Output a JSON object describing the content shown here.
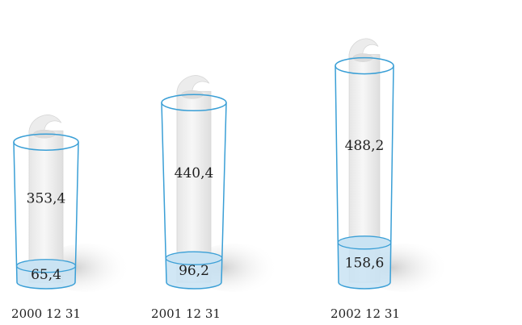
{
  "chart_data": {
    "type": "bar",
    "categories": [
      "2000 12 31",
      "2001 12 31",
      "2002 12 31"
    ],
    "series": [
      {
        "values": [
          65.4,
          96.2,
          158.6
        ]
      },
      {
        "values": [
          353.4,
          440.4,
          488.2
        ]
      }
    ],
    "value_labels": [
      [
        "65,4",
        "96,2",
        "158,6"
      ],
      [
        "353,4",
        "440,4",
        "488,2"
      ]
    ],
    "colors": {
      "glass_outline": "#3a9fd6",
      "liquid_fill": "#c9e3f3",
      "paper_fill": "#f2f2f2",
      "paper_edge": "#d6d6d6",
      "shadow": "#d9d9d9"
    }
  }
}
